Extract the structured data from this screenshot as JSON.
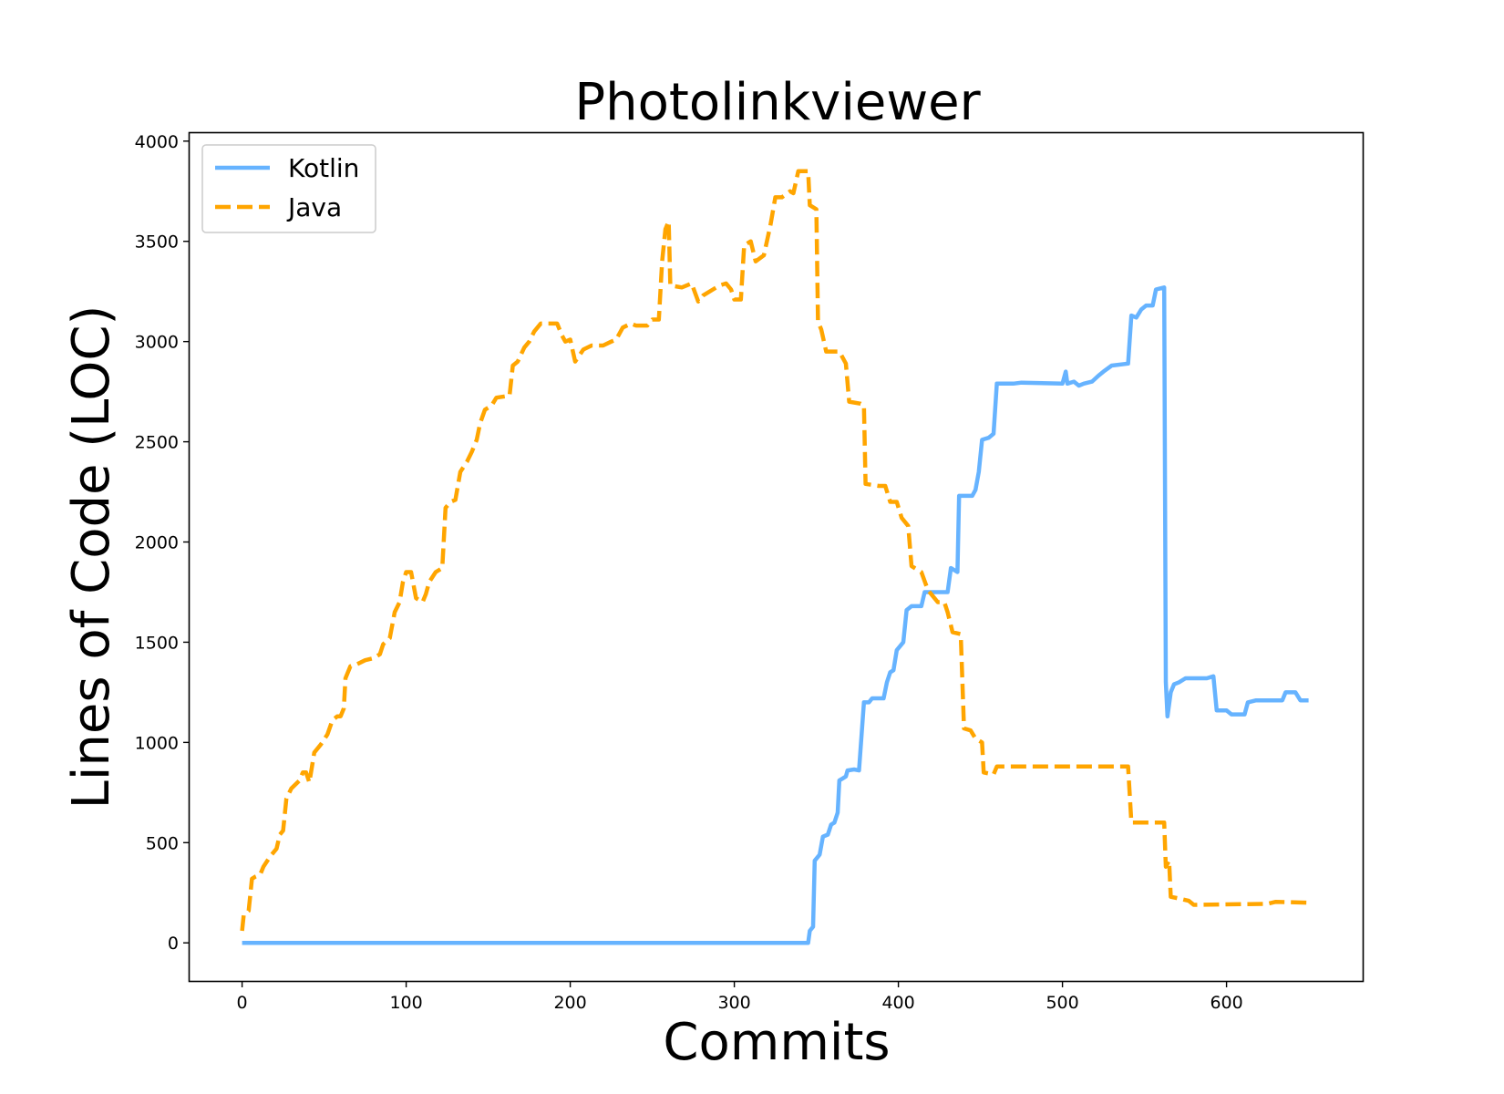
{
  "chart_data": {
    "type": "line",
    "title": "Photolinkviewer",
    "xlabel": "Commits",
    "ylabel": "Lines of Code (LOC)",
    "xlim": [
      -32,
      683
    ],
    "ylim": [
      -190,
      4040
    ],
    "x_ticks": [
      0,
      100,
      200,
      300,
      400,
      500,
      600
    ],
    "y_ticks": [
      0,
      500,
      1000,
      1500,
      2000,
      2500,
      3000,
      3500,
      4000
    ],
    "grid": false,
    "legend": "upper-left",
    "series": [
      {
        "name": "Kotlin",
        "color": "#66b3ff",
        "style": "solid",
        "points": [
          [
            0,
            0
          ],
          [
            345,
            0
          ],
          [
            346,
            60
          ],
          [
            348,
            80
          ],
          [
            349,
            410
          ],
          [
            351,
            430
          ],
          [
            352,
            440
          ],
          [
            354,
            530
          ],
          [
            357,
            540
          ],
          [
            359,
            590
          ],
          [
            361,
            600
          ],
          [
            363,
            650
          ],
          [
            364,
            810
          ],
          [
            366,
            820
          ],
          [
            368,
            830
          ],
          [
            369,
            860
          ],
          [
            373,
            865
          ],
          [
            376,
            860
          ],
          [
            379,
            1200
          ],
          [
            382,
            1200
          ],
          [
            384,
            1220
          ],
          [
            391,
            1220
          ],
          [
            393,
            1300
          ],
          [
            395,
            1350
          ],
          [
            397,
            1360
          ],
          [
            399,
            1460
          ],
          [
            401,
            1480
          ],
          [
            403,
            1500
          ],
          [
            405,
            1660
          ],
          [
            408,
            1680
          ],
          [
            414,
            1680
          ],
          [
            416,
            1750
          ],
          [
            430,
            1750
          ],
          [
            432,
            1870
          ],
          [
            436,
            1850
          ],
          [
            437,
            2230
          ],
          [
            445,
            2230
          ],
          [
            447,
            2260
          ],
          [
            449,
            2350
          ],
          [
            451,
            2510
          ],
          [
            455,
            2520
          ],
          [
            458,
            2540
          ],
          [
            460,
            2790
          ],
          [
            470,
            2790
          ],
          [
            475,
            2795
          ],
          [
            500,
            2790
          ],
          [
            502,
            2850
          ],
          [
            503,
            2790
          ],
          [
            507,
            2800
          ],
          [
            510,
            2780
          ],
          [
            513,
            2790
          ],
          [
            518,
            2800
          ],
          [
            522,
            2830
          ],
          [
            525,
            2850
          ],
          [
            530,
            2880
          ],
          [
            540,
            2890
          ],
          [
            542,
            3130
          ],
          [
            545,
            3120
          ],
          [
            548,
            3160
          ],
          [
            551,
            3180
          ],
          [
            555,
            3180
          ],
          [
            557,
            3260
          ],
          [
            562,
            3270
          ],
          [
            563,
            1300
          ],
          [
            564,
            1130
          ],
          [
            566,
            1250
          ],
          [
            568,
            1290
          ],
          [
            571,
            1300
          ],
          [
            575,
            1320
          ],
          [
            588,
            1320
          ],
          [
            592,
            1330
          ],
          [
            594,
            1160
          ],
          [
            600,
            1160
          ],
          [
            603,
            1140
          ],
          [
            611,
            1140
          ],
          [
            613,
            1200
          ],
          [
            618,
            1210
          ],
          [
            634,
            1210
          ],
          [
            636,
            1250
          ],
          [
            642,
            1250
          ],
          [
            645,
            1210
          ],
          [
            650,
            1210
          ]
        ]
      },
      {
        "name": "Java",
        "color": "#ffa500",
        "style": "dashed",
        "points": [
          [
            0,
            60
          ],
          [
            1,
            140
          ],
          [
            4,
            160
          ],
          [
            6,
            320
          ],
          [
            8,
            330
          ],
          [
            11,
            340
          ],
          [
            13,
            380
          ],
          [
            17,
            430
          ],
          [
            21,
            470
          ],
          [
            23,
            540
          ],
          [
            25,
            560
          ],
          [
            27,
            720
          ],
          [
            30,
            770
          ],
          [
            35,
            810
          ],
          [
            37,
            850
          ],
          [
            39,
            850
          ],
          [
            41,
            800
          ],
          [
            44,
            950
          ],
          [
            48,
            990
          ],
          [
            52,
            1040
          ],
          [
            55,
            1110
          ],
          [
            58,
            1130
          ],
          [
            60,
            1130
          ],
          [
            62,
            1170
          ],
          [
            63,
            1320
          ],
          [
            66,
            1380
          ],
          [
            70,
            1390
          ],
          [
            75,
            1410
          ],
          [
            80,
            1420
          ],
          [
            84,
            1440
          ],
          [
            86,
            1490
          ],
          [
            90,
            1520
          ],
          [
            93,
            1650
          ],
          [
            96,
            1700
          ],
          [
            98,
            1800
          ],
          [
            100,
            1850
          ],
          [
            103,
            1850
          ],
          [
            106,
            1720
          ],
          [
            110,
            1700
          ],
          [
            112,
            1740
          ],
          [
            114,
            1800
          ],
          [
            118,
            1850
          ],
          [
            122,
            1870
          ],
          [
            124,
            2170
          ],
          [
            127,
            2200
          ],
          [
            130,
            2210
          ],
          [
            133,
            2350
          ],
          [
            137,
            2400
          ],
          [
            140,
            2450
          ],
          [
            143,
            2510
          ],
          [
            145,
            2590
          ],
          [
            148,
            2660
          ],
          [
            152,
            2680
          ],
          [
            155,
            2720
          ],
          [
            163,
            2730
          ],
          [
            165,
            2880
          ],
          [
            168,
            2900
          ],
          [
            172,
            2970
          ],
          [
            175,
            3000
          ],
          [
            178,
            3050
          ],
          [
            182,
            3090
          ],
          [
            192,
            3090
          ],
          [
            195,
            3030
          ],
          [
            197,
            3000
          ],
          [
            200,
            3010
          ],
          [
            203,
            2900
          ],
          [
            208,
            2960
          ],
          [
            213,
            2980
          ],
          [
            220,
            2980
          ],
          [
            225,
            3000
          ],
          [
            228,
            3010
          ],
          [
            232,
            3070
          ],
          [
            237,
            3090
          ],
          [
            240,
            3080
          ],
          [
            247,
            3080
          ],
          [
            250,
            3110
          ],
          [
            254,
            3110
          ],
          [
            256,
            3400
          ],
          [
            258,
            3560
          ],
          [
            260,
            3600
          ],
          [
            261,
            3280
          ],
          [
            268,
            3270
          ],
          [
            274,
            3290
          ],
          [
            278,
            3200
          ],
          [
            281,
            3230
          ],
          [
            287,
            3260
          ],
          [
            291,
            3280
          ],
          [
            295,
            3290
          ],
          [
            298,
            3260
          ],
          [
            300,
            3210
          ],
          [
            304,
            3210
          ],
          [
            306,
            3480
          ],
          [
            310,
            3500
          ],
          [
            313,
            3400
          ],
          [
            318,
            3430
          ],
          [
            322,
            3580
          ],
          [
            325,
            3720
          ],
          [
            329,
            3720
          ],
          [
            334,
            3750
          ],
          [
            336,
            3740
          ],
          [
            339,
            3850
          ],
          [
            345,
            3850
          ],
          [
            346,
            3680
          ],
          [
            350,
            3660
          ],
          [
            351,
            3100
          ],
          [
            353,
            3060
          ],
          [
            356,
            2950
          ],
          [
            364,
            2950
          ],
          [
            368,
            2890
          ],
          [
            370,
            2700
          ],
          [
            377,
            2690
          ],
          [
            379,
            2680
          ],
          [
            380,
            2290
          ],
          [
            388,
            2280
          ],
          [
            392,
            2280
          ],
          [
            395,
            2200
          ],
          [
            399,
            2200
          ],
          [
            402,
            2120
          ],
          [
            406,
            2080
          ],
          [
            408,
            1880
          ],
          [
            414,
            1850
          ],
          [
            418,
            1760
          ],
          [
            422,
            1720
          ],
          [
            424,
            1700
          ],
          [
            428,
            1700
          ],
          [
            430,
            1650
          ],
          [
            433,
            1550
          ],
          [
            438,
            1540
          ],
          [
            440,
            1070
          ],
          [
            444,
            1060
          ],
          [
            447,
            1020
          ],
          [
            451,
            1000
          ],
          [
            452,
            850
          ],
          [
            458,
            840
          ],
          [
            460,
            880
          ],
          [
            540,
            880
          ],
          [
            542,
            600
          ],
          [
            562,
            600
          ],
          [
            563,
            380
          ],
          [
            565,
            410
          ],
          [
            566,
            230
          ],
          [
            572,
            220
          ],
          [
            577,
            210
          ],
          [
            580,
            190
          ],
          [
            625,
            195
          ],
          [
            630,
            205
          ],
          [
            651,
            200
          ]
        ]
      }
    ]
  }
}
